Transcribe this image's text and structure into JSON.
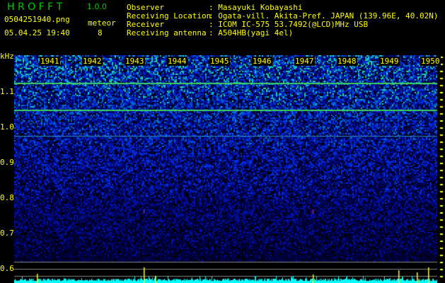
{
  "header": {
    "app_title": "H R O F F T",
    "version": "1.0.0",
    "filename": "0504251940.png",
    "datetime": "05.04.25 19:40",
    "meteor_label": "meteor",
    "meteor_count": "8"
  },
  "info": [
    {
      "label": "Observer",
      "value": "Masayuki Kobayashi"
    },
    {
      "label": "Receiving Location",
      "value": "Ogata-vill. Akita-Pref. JAPAN (139.96E, 40.02N)"
    },
    {
      "label": "Receiver",
      "value": "ICOM IC-575 53.7492(@LCD)MHz USB"
    },
    {
      "label": "Receiving antenna",
      "value": "A504HB(yagi 4el)"
    }
  ],
  "y_axis": {
    "unit": "kHz",
    "ticks": [
      "1.1",
      "1.0",
      "0.9",
      "0.8",
      "0.7",
      "0.6"
    ]
  },
  "x_axis": {
    "ticks": [
      "1941",
      "1942",
      "1943",
      "1944",
      "1945",
      "1946",
      "1947",
      "1948",
      "1949",
      "1950"
    ]
  },
  "colors": {
    "text": "#ffff00",
    "logo": "#00cc00",
    "level": "#00ffff",
    "meteor": "#ffff00"
  }
}
